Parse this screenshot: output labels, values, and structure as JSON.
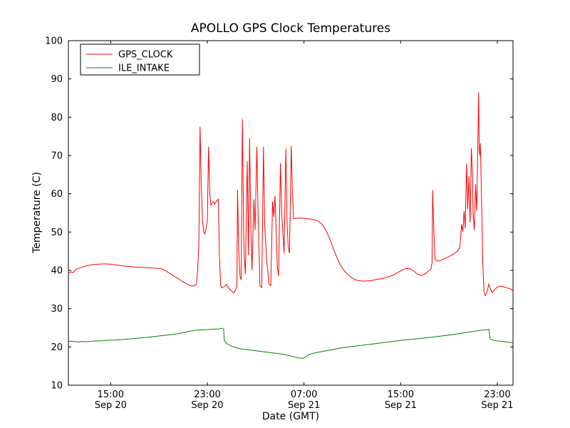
{
  "chart_data": {
    "type": "line",
    "title": "APOLLO GPS Clock Temperatures",
    "xlabel": "Date (GMT)",
    "ylabel": "Temperature (C)",
    "x_unit": "hours since Sep 20 00:00 GMT",
    "xlim": [
      11.5,
      48.3
    ],
    "ylim": [
      10,
      100
    ],
    "grid": false,
    "frame_color": "#000000",
    "yticks": [
      10,
      20,
      30,
      40,
      50,
      60,
      70,
      80,
      90,
      100
    ],
    "xticks": [
      {
        "value": 15,
        "time": "15:00",
        "date": "Sep 20"
      },
      {
        "value": 23,
        "time": "23:00",
        "date": "Sep 20"
      },
      {
        "value": 31,
        "time": "07:00",
        "date": "Sep 21"
      },
      {
        "value": 39,
        "time": "15:00",
        "date": "Sep 21"
      },
      {
        "value": 47,
        "time": "23:00",
        "date": "Sep 21"
      }
    ],
    "legend": {
      "position": "upper left"
    },
    "series": [
      {
        "name": "GPS_CLOCK",
        "color": "#ff0000",
        "points": [
          [
            11.5,
            39.2
          ],
          [
            11.7,
            39.6
          ],
          [
            11.9,
            39.4
          ],
          [
            12.1,
            40.2
          ],
          [
            12.4,
            40.6
          ],
          [
            12.7,
            40.9
          ],
          [
            13.0,
            41.2
          ],
          [
            13.5,
            41.5
          ],
          [
            14.0,
            41.6
          ],
          [
            14.5,
            41.7
          ],
          [
            15.0,
            41.6
          ],
          [
            15.5,
            41.4
          ],
          [
            16.0,
            41.2
          ],
          [
            16.5,
            41.0
          ],
          [
            17.0,
            40.9
          ],
          [
            17.5,
            40.8
          ],
          [
            18.0,
            40.7
          ],
          [
            18.5,
            40.6
          ],
          [
            19.0,
            40.5
          ],
          [
            19.3,
            40.3
          ],
          [
            19.6,
            39.8
          ],
          [
            20.0,
            39.0
          ],
          [
            20.4,
            38.2
          ],
          [
            20.8,
            37.4
          ],
          [
            21.1,
            36.8
          ],
          [
            21.4,
            36.3
          ],
          [
            21.6,
            36.0
          ],
          [
            21.8,
            35.9
          ],
          [
            22.0,
            36.1
          ],
          [
            22.1,
            36.4
          ],
          [
            22.2,
            40.0
          ],
          [
            22.3,
            47.0
          ],
          [
            22.4,
            77.5
          ],
          [
            22.5,
            62.0
          ],
          [
            22.6,
            53.0
          ],
          [
            22.7,
            50.0
          ],
          [
            22.8,
            49.5
          ],
          [
            22.9,
            51.0
          ],
          [
            23.0,
            53.0
          ],
          [
            23.1,
            72.3
          ],
          [
            23.2,
            60.0
          ],
          [
            23.3,
            57.0
          ],
          [
            23.4,
            57.5
          ],
          [
            23.5,
            58.0
          ],
          [
            23.6,
            57.3
          ],
          [
            23.7,
            57.8
          ],
          [
            23.8,
            58.2
          ],
          [
            23.9,
            58.6
          ],
          [
            24.0,
            44.0
          ],
          [
            24.1,
            36.0
          ],
          [
            24.2,
            35.4
          ],
          [
            24.4,
            35.8
          ],
          [
            24.6,
            36.3
          ],
          [
            24.8,
            35.2
          ],
          [
            25.0,
            34.6
          ],
          [
            25.2,
            34.1
          ],
          [
            25.35,
            35.0
          ],
          [
            25.45,
            36.0
          ],
          [
            25.5,
            61.0
          ],
          [
            25.6,
            45.0
          ],
          [
            25.7,
            38.5
          ],
          [
            25.8,
            37.5
          ],
          [
            25.9,
            79.5
          ],
          [
            26.0,
            52.0
          ],
          [
            26.05,
            44.0
          ],
          [
            26.15,
            39.0
          ],
          [
            26.3,
            68.5
          ],
          [
            26.4,
            44.0
          ],
          [
            26.5,
            74.5
          ],
          [
            26.6,
            52.0
          ],
          [
            26.7,
            40.0
          ],
          [
            26.85,
            58.5
          ],
          [
            26.95,
            50.5
          ],
          [
            27.1,
            72.3
          ],
          [
            27.2,
            55.0
          ],
          [
            27.35,
            36.0
          ],
          [
            27.5,
            35.5
          ],
          [
            27.65,
            72.3
          ],
          [
            27.75,
            52.0
          ],
          [
            27.9,
            43.0
          ],
          [
            28.1,
            36.5
          ],
          [
            28.25,
            36.0
          ],
          [
            28.4,
            58.0
          ],
          [
            28.5,
            54.0
          ],
          [
            28.6,
            59.5
          ],
          [
            28.7,
            50.0
          ],
          [
            28.8,
            41.0
          ],
          [
            28.9,
            38.5
          ],
          [
            29.05,
            68.0
          ],
          [
            29.15,
            55.0
          ],
          [
            29.25,
            50.0
          ],
          [
            29.35,
            44.5
          ],
          [
            29.5,
            71.8
          ],
          [
            29.6,
            52.0
          ],
          [
            29.7,
            46.0
          ],
          [
            29.8,
            44.5
          ],
          [
            29.95,
            72.5
          ],
          [
            30.05,
            60.0
          ],
          [
            30.15,
            53.5
          ],
          [
            30.4,
            53.6
          ],
          [
            30.7,
            53.7
          ],
          [
            31.0,
            53.6
          ],
          [
            31.3,
            53.5
          ],
          [
            31.6,
            53.4
          ],
          [
            31.9,
            53.2
          ],
          [
            32.2,
            52.8
          ],
          [
            32.5,
            52.0
          ],
          [
            32.8,
            50.5
          ],
          [
            33.1,
            48.5
          ],
          [
            33.4,
            46.0
          ],
          [
            33.7,
            43.5
          ],
          [
            34.0,
            41.5
          ],
          [
            34.3,
            40.0
          ],
          [
            34.6,
            39.0
          ],
          [
            34.9,
            38.2
          ],
          [
            35.2,
            37.6
          ],
          [
            35.5,
            37.3
          ],
          [
            36.0,
            37.2
          ],
          [
            36.5,
            37.3
          ],
          [
            37.0,
            37.6
          ],
          [
            37.5,
            37.9
          ],
          [
            38.0,
            38.3
          ],
          [
            38.4,
            38.8
          ],
          [
            38.8,
            39.5
          ],
          [
            39.2,
            40.2
          ],
          [
            39.5,
            40.5
          ],
          [
            39.8,
            40.4
          ],
          [
            40.1,
            39.8
          ],
          [
            40.4,
            39.0
          ],
          [
            40.7,
            38.7
          ],
          [
            41.0,
            39.0
          ],
          [
            41.3,
            39.8
          ],
          [
            41.5,
            40.3
          ],
          [
            41.6,
            42.0
          ],
          [
            41.65,
            61.0
          ],
          [
            41.75,
            50.0
          ],
          [
            41.85,
            43.0
          ],
          [
            42.0,
            42.4
          ],
          [
            42.3,
            42.6
          ],
          [
            42.6,
            43.0
          ],
          [
            43.0,
            43.6
          ],
          [
            43.4,
            44.3
          ],
          [
            43.7,
            45.0
          ],
          [
            43.9,
            46.0
          ],
          [
            44.05,
            52.0
          ],
          [
            44.15,
            50.0
          ],
          [
            44.25,
            55.5
          ],
          [
            44.35,
            51.0
          ],
          [
            44.45,
            67.8
          ],
          [
            44.55,
            56.0
          ],
          [
            44.65,
            64.5
          ],
          [
            44.75,
            52.5
          ],
          [
            44.85,
            71.9
          ],
          [
            44.95,
            64.0
          ],
          [
            45.0,
            55.0
          ],
          [
            45.1,
            50.5
          ],
          [
            45.2,
            62.5
          ],
          [
            45.3,
            55.5
          ],
          [
            45.35,
            65.5
          ],
          [
            45.45,
            86.5
          ],
          [
            45.5,
            72.0
          ],
          [
            45.55,
            70.0
          ],
          [
            45.6,
            73.2
          ],
          [
            45.7,
            58.0
          ],
          [
            45.8,
            42.0
          ],
          [
            45.9,
            34.5
          ],
          [
            46.0,
            33.4
          ],
          [
            46.15,
            34.3
          ],
          [
            46.3,
            36.4
          ],
          [
            46.45,
            35.0
          ],
          [
            46.6,
            34.2
          ],
          [
            46.8,
            35.0
          ],
          [
            47.0,
            35.6
          ],
          [
            47.2,
            35.9
          ],
          [
            47.5,
            35.7
          ],
          [
            47.8,
            35.4
          ],
          [
            48.1,
            35.2
          ],
          [
            48.3,
            34.7
          ]
        ]
      },
      {
        "name": "ILE_INTAKE",
        "color": "#008000",
        "points": [
          [
            11.5,
            21.5
          ],
          [
            12.0,
            21.4
          ],
          [
            12.3,
            21.3
          ],
          [
            12.6,
            21.45
          ],
          [
            13.0,
            21.35
          ],
          [
            13.4,
            21.5
          ],
          [
            13.8,
            21.55
          ],
          [
            14.2,
            21.6
          ],
          [
            14.6,
            21.7
          ],
          [
            15.0,
            21.75
          ],
          [
            15.4,
            21.8
          ],
          [
            15.8,
            21.9
          ],
          [
            16.2,
            22.0
          ],
          [
            16.6,
            22.1
          ],
          [
            17.0,
            22.2
          ],
          [
            17.4,
            22.3
          ],
          [
            17.8,
            22.45
          ],
          [
            18.2,
            22.55
          ],
          [
            18.6,
            22.7
          ],
          [
            19.0,
            22.85
          ],
          [
            19.4,
            23.0
          ],
          [
            19.8,
            23.15
          ],
          [
            20.2,
            23.3
          ],
          [
            20.6,
            23.5
          ],
          [
            21.0,
            23.7
          ],
          [
            21.3,
            23.9
          ],
          [
            21.6,
            24.1
          ],
          [
            21.9,
            24.3
          ],
          [
            22.2,
            24.4
          ],
          [
            22.5,
            24.45
          ],
          [
            22.8,
            24.5
          ],
          [
            23.1,
            24.55
          ],
          [
            23.4,
            24.6
          ],
          [
            23.7,
            24.65
          ],
          [
            24.0,
            24.7
          ],
          [
            24.2,
            24.9
          ],
          [
            24.35,
            24.6
          ],
          [
            24.4,
            21.8
          ],
          [
            24.5,
            21.3
          ],
          [
            24.6,
            20.9
          ],
          [
            24.8,
            20.5
          ],
          [
            25.0,
            20.2
          ],
          [
            25.3,
            19.9
          ],
          [
            25.6,
            19.6
          ],
          [
            26.0,
            19.4
          ],
          [
            26.5,
            19.2
          ],
          [
            27.0,
            19.0
          ],
          [
            27.5,
            18.8
          ],
          [
            28.0,
            18.6
          ],
          [
            28.5,
            18.4
          ],
          [
            29.0,
            18.2
          ],
          [
            29.4,
            18.0
          ],
          [
            29.8,
            17.7
          ],
          [
            30.2,
            17.4
          ],
          [
            30.6,
            17.1
          ],
          [
            30.9,
            17.0
          ],
          [
            31.1,
            17.3
          ],
          [
            31.3,
            17.8
          ],
          [
            31.6,
            18.2
          ],
          [
            32.0,
            18.5
          ],
          [
            32.5,
            18.8
          ],
          [
            33.0,
            19.1
          ],
          [
            33.5,
            19.4
          ],
          [
            34.0,
            19.7
          ],
          [
            34.5,
            19.9
          ],
          [
            35.0,
            20.1
          ],
          [
            35.5,
            20.3
          ],
          [
            36.0,
            20.5
          ],
          [
            36.5,
            20.7
          ],
          [
            37.0,
            20.9
          ],
          [
            37.5,
            21.1
          ],
          [
            38.0,
            21.3
          ],
          [
            38.5,
            21.5
          ],
          [
            39.0,
            21.7
          ],
          [
            39.4,
            21.85
          ],
          [
            39.8,
            21.95
          ],
          [
            40.2,
            22.1
          ],
          [
            40.6,
            22.2
          ],
          [
            41.0,
            22.35
          ],
          [
            41.5,
            22.5
          ],
          [
            42.0,
            22.7
          ],
          [
            42.5,
            22.9
          ],
          [
            43.0,
            23.1
          ],
          [
            43.5,
            23.3
          ],
          [
            44.0,
            23.55
          ],
          [
            44.4,
            23.75
          ],
          [
            44.8,
            23.95
          ],
          [
            45.2,
            24.15
          ],
          [
            45.5,
            24.3
          ],
          [
            45.8,
            24.4
          ],
          [
            46.1,
            24.5
          ],
          [
            46.3,
            24.6
          ],
          [
            46.4,
            22.2
          ],
          [
            46.6,
            21.8
          ],
          [
            46.9,
            21.6
          ],
          [
            47.2,
            21.5
          ],
          [
            47.5,
            21.4
          ],
          [
            47.8,
            21.3
          ],
          [
            48.1,
            21.15
          ],
          [
            48.3,
            21.1
          ]
        ]
      }
    ]
  }
}
